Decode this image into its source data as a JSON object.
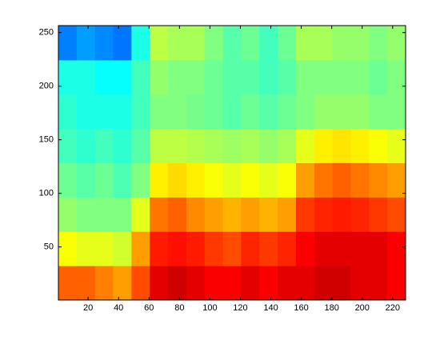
{
  "chart_data": {
    "type": "heatmap",
    "colormap": "jet",
    "clim": [
      0,
      1
    ],
    "xbins": [
      0.5,
      12.5,
      24.5,
      36.5,
      48.5,
      60.5,
      72.5,
      84.5,
      96.5,
      108.5,
      120.5,
      132.5,
      144.5,
      156.5,
      168.5,
      180.5,
      192.5,
      204.5,
      216.5,
      228.5
    ],
    "ybins": [
      0.5,
      32.5,
      64.5,
      96.5,
      128.5,
      160.5,
      192.5,
      224.5,
      256.5
    ],
    "values": [
      [
        0.78,
        0.78,
        0.75,
        0.72,
        0.8,
        0.9,
        0.92,
        0.9,
        0.88,
        0.88,
        0.9,
        0.88,
        0.9,
        0.9,
        0.92,
        0.92,
        0.9,
        0.9,
        0.88
      ],
      [
        0.62,
        0.6,
        0.6,
        0.58,
        0.72,
        0.85,
        0.86,
        0.85,
        0.82,
        0.8,
        0.84,
        0.82,
        0.84,
        0.88,
        0.9,
        0.9,
        0.9,
        0.9,
        0.88
      ],
      [
        0.52,
        0.5,
        0.5,
        0.5,
        0.6,
        0.76,
        0.78,
        0.74,
        0.72,
        0.7,
        0.72,
        0.7,
        0.72,
        0.82,
        0.84,
        0.85,
        0.84,
        0.82,
        0.8
      ],
      [
        0.48,
        0.46,
        0.48,
        0.45,
        0.5,
        0.64,
        0.66,
        0.64,
        0.62,
        0.6,
        0.62,
        0.6,
        0.62,
        0.72,
        0.76,
        0.78,
        0.76,
        0.74,
        0.72
      ],
      [
        0.44,
        0.42,
        0.44,
        0.42,
        0.46,
        0.56,
        0.56,
        0.55,
        0.54,
        0.53,
        0.54,
        0.52,
        0.54,
        0.6,
        0.64,
        0.65,
        0.64,
        0.62,
        0.6
      ],
      [
        0.42,
        0.4,
        0.4,
        0.4,
        0.44,
        0.5,
        0.5,
        0.49,
        0.48,
        0.46,
        0.48,
        0.46,
        0.48,
        0.5,
        0.52,
        0.52,
        0.52,
        0.5,
        0.5
      ],
      [
        0.4,
        0.4,
        0.38,
        0.38,
        0.44,
        0.52,
        0.5,
        0.5,
        0.48,
        0.46,
        0.46,
        0.44,
        0.46,
        0.5,
        0.5,
        0.5,
        0.5,
        0.48,
        0.5
      ],
      [
        0.25,
        0.28,
        0.26,
        0.24,
        0.4,
        0.56,
        0.54,
        0.54,
        0.5,
        0.46,
        0.48,
        0.44,
        0.48,
        0.54,
        0.54,
        0.52,
        0.52,
        0.5,
        0.52
      ]
    ],
    "xlim": [
      0.5,
      228.5
    ],
    "ylim": [
      0.5,
      256.5
    ],
    "xticks": [
      20,
      40,
      60,
      80,
      100,
      120,
      140,
      160,
      180,
      200,
      220
    ],
    "yticks": [
      50,
      100,
      150,
      200,
      250
    ]
  }
}
